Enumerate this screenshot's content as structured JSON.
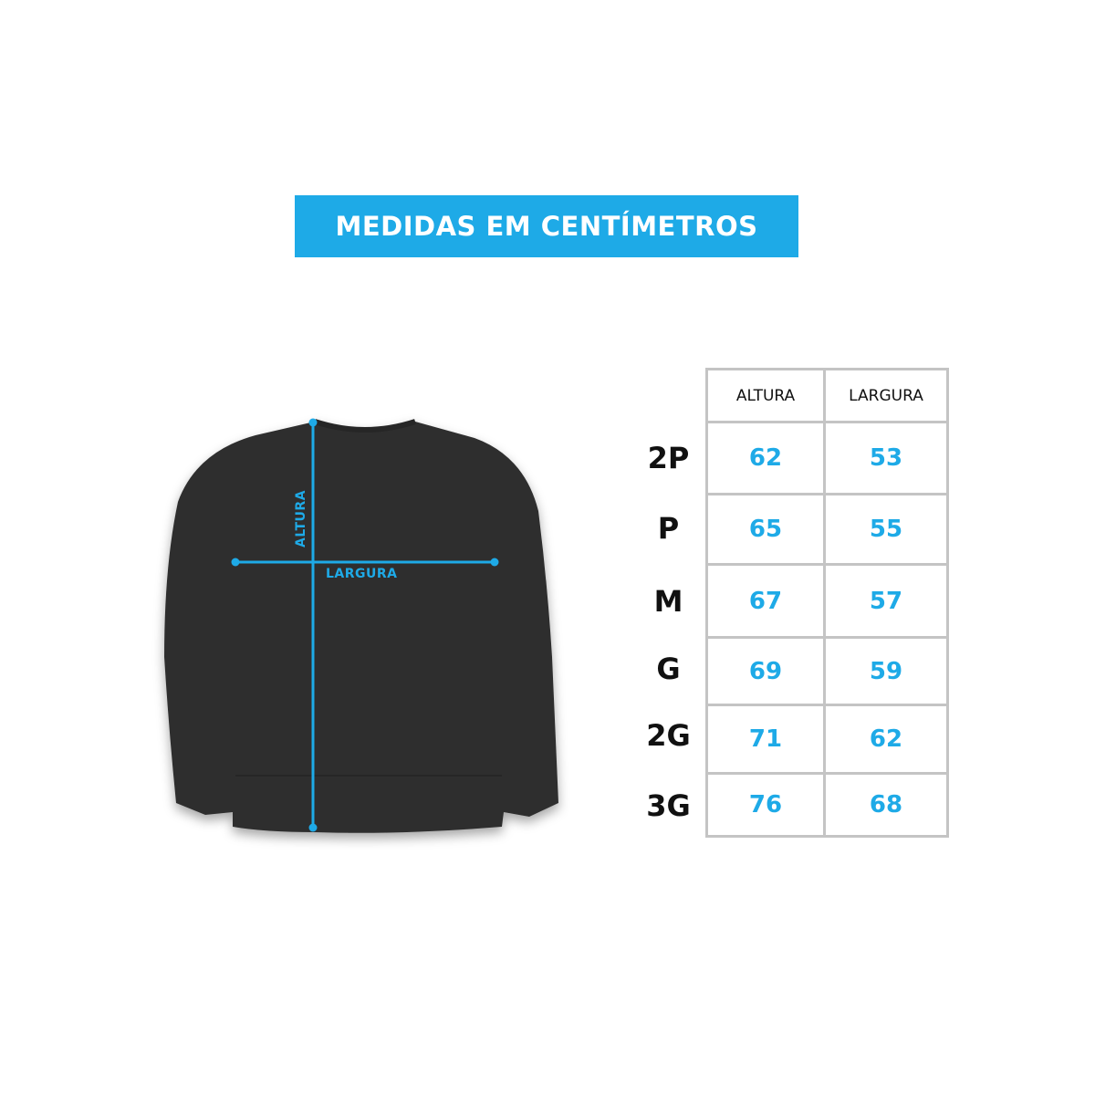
{
  "banner": {
    "title": "MEDIDAS EM CENTÍMETROS"
  },
  "diagram": {
    "height_label": "ALTURA",
    "width_label": "LARGURA",
    "accent_color": "#1eaae7",
    "garment_color": "#2f2f2f"
  },
  "table": {
    "headers": [
      "ALTURA",
      "LARGURA"
    ],
    "rows": [
      {
        "size": "2P",
        "altura": "62",
        "largura": "53"
      },
      {
        "size": "P",
        "altura": "65",
        "largura": "55"
      },
      {
        "size": "M",
        "altura": "67",
        "largura": "57"
      },
      {
        "size": "G",
        "altura": "69",
        "largura": "59"
      },
      {
        "size": "2G",
        "altura": "71",
        "largura": "62"
      },
      {
        "size": "3G",
        "altura": "76",
        "largura": "68"
      }
    ]
  }
}
